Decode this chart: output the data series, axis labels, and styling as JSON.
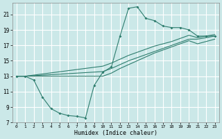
{
  "xlabel": "Humidex (Indice chaleur)",
  "bg_color": "#cbe8e8",
  "grid_color": "#ffffff",
  "line_color": "#2e7d6e",
  "xlim": [
    -0.5,
    23.5
  ],
  "ylim": [
    7,
    22.5
  ],
  "xticks": [
    0,
    1,
    2,
    3,
    4,
    5,
    6,
    7,
    8,
    9,
    10,
    11,
    12,
    13,
    14,
    15,
    16,
    17,
    18,
    19,
    20,
    21,
    22,
    23
  ],
  "yticks": [
    7,
    9,
    11,
    13,
    15,
    17,
    19,
    21
  ],
  "curve_x": [
    0,
    1,
    2,
    3,
    4,
    5,
    6,
    7,
    8,
    9,
    10,
    11,
    12,
    13,
    14,
    15,
    16,
    17,
    18,
    19,
    20,
    21,
    22,
    23
  ],
  "curve_y": [
    13,
    13,
    12.5,
    10.3,
    8.8,
    8.2,
    7.9,
    7.8,
    7.6,
    11.8,
    13.5,
    14.2,
    18.2,
    21.8,
    22.0,
    20.5,
    20.2,
    19.5,
    19.3,
    19.3,
    19.0,
    18.2,
    18.2,
    18.2
  ],
  "line_a_x": [
    0,
    1,
    10,
    11,
    12,
    13,
    14,
    15,
    16,
    17,
    18,
    19,
    20,
    21,
    22,
    23
  ],
  "line_a_y": [
    13,
    13,
    13.6,
    14.0,
    14.5,
    15.0,
    15.4,
    15.8,
    16.2,
    16.6,
    17.0,
    17.4,
    17.8,
    17.8,
    18.0,
    18.2
  ],
  "line_b_x": [
    0,
    1,
    10,
    11,
    12,
    13,
    14,
    15,
    16,
    17,
    18,
    19,
    20,
    21,
    22,
    23
  ],
  "line_b_y": [
    13,
    13,
    14.3,
    14.7,
    15.2,
    15.7,
    16.1,
    16.5,
    16.9,
    17.2,
    17.5,
    17.9,
    18.3,
    18.0,
    18.2,
    18.4
  ],
  "line_c_x": [
    0,
    1,
    10,
    11,
    12,
    13,
    14,
    15,
    16,
    17,
    18,
    19,
    20,
    21,
    22,
    23
  ],
  "line_c_y": [
    13,
    13,
    13.0,
    13.4,
    14.0,
    14.5,
    15.0,
    15.5,
    16.0,
    16.4,
    16.8,
    17.2,
    17.6,
    17.2,
    17.5,
    17.8
  ]
}
